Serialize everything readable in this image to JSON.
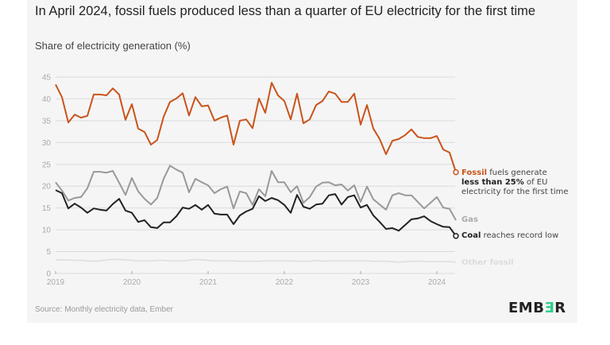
{
  "header": {
    "title": "In April 2024, fossil fuels produced less than a quarter of EU electricity for the first time",
    "subtitle": "Share of electricity generation (%)"
  },
  "footer": {
    "source": "Source: Monthly electricity data, Ember",
    "logo_parts": [
      "EMB",
      "Ǝ",
      "R"
    ]
  },
  "annotations": {
    "fossil": {
      "bold": "Fossil",
      "text1": " fuels generate",
      "bold2": "less than 25%",
      "text2": " of EU",
      "text3": "electricity for the first time"
    },
    "gas": {
      "label": "Gas"
    },
    "coal": {
      "bold": "Coal",
      "text": " reaches record low"
    },
    "other": {
      "label": "Other fossil"
    }
  },
  "colors": {
    "fossil": "#c9541b",
    "gas": "#999999",
    "coal": "#222222",
    "other": "#dddddd",
    "grid": "#dcdcdc",
    "tick": "#aaaaaa"
  },
  "chart_data": {
    "type": "line",
    "title": "In April 2024, fossil fuels produced less than a quarter of EU electricity for the first time",
    "ylabel": "Share of electricity generation (%)",
    "xlabel": "",
    "x_start": "2019-01",
    "x_end": "2024-04",
    "x_frequency": "monthly",
    "x_ticks": [
      "2019",
      "2020",
      "2021",
      "2022",
      "2023",
      "2024"
    ],
    "y_ticks": [
      0,
      5,
      10,
      15,
      20,
      25,
      30,
      35,
      40,
      45
    ],
    "ylim": [
      0,
      45
    ],
    "grid": true,
    "legend": "direct labels at line ends (right)",
    "series": [
      {
        "name": "Fossil",
        "values": [
          43.3,
          40.4,
          34.6,
          36.4,
          35.7,
          36.1,
          41.0,
          41.0,
          40.8,
          42.4,
          41.0,
          35.2,
          38.8,
          33.2,
          32.4,
          29.5,
          30.6,
          35.9,
          39.3,
          40.1,
          41.3,
          36.2,
          40.4,
          38.3,
          38.5,
          35.0,
          35.7,
          36.2,
          29.5,
          35.0,
          35.3,
          33.3,
          40.1,
          36.8,
          43.7,
          40.8,
          39.5,
          35.3,
          41.2,
          34.4,
          35.3,
          38.6,
          39.5,
          41.7,
          41.2,
          39.3,
          39.3,
          41.2,
          34.1,
          38.6,
          33.2,
          30.8,
          27.3,
          30.4,
          30.8,
          31.7,
          33.0,
          31.3,
          31.0,
          31.0,
          31.5,
          28.4,
          27.7,
          23.2
        ]
      },
      {
        "name": "Gas",
        "values": [
          20.9,
          19.0,
          16.7,
          17.3,
          17.5,
          19.5,
          23.3,
          23.3,
          23.1,
          23.5,
          20.8,
          18.0,
          21.9,
          18.8,
          17.1,
          15.8,
          17.3,
          21.7,
          24.7,
          23.8,
          23.1,
          18.6,
          21.7,
          20.9,
          20.2,
          18.4,
          19.3,
          19.9,
          14.9,
          18.8,
          18.4,
          15.7,
          19.3,
          17.7,
          23.5,
          20.9,
          20.9,
          18.6,
          20.0,
          16.2,
          17.5,
          19.9,
          20.8,
          20.9,
          20.2,
          20.4,
          19.0,
          20.2,
          16.4,
          19.9,
          17.0,
          15.8,
          14.6,
          17.9,
          18.4,
          17.9,
          17.9,
          16.4,
          14.9,
          16.2,
          17.5,
          15.1,
          14.8,
          12.2
        ]
      },
      {
        "name": "Coal",
        "values": [
          19.1,
          18.4,
          14.9,
          16.0,
          15.1,
          13.9,
          14.9,
          14.6,
          14.4,
          15.9,
          17.1,
          14.4,
          13.9,
          11.8,
          12.2,
          10.6,
          10.4,
          11.7,
          11.7,
          13.1,
          15.1,
          14.8,
          15.7,
          14.6,
          15.7,
          13.7,
          13.5,
          13.5,
          11.3,
          13.3,
          14.2,
          14.8,
          17.7,
          16.6,
          17.3,
          16.8,
          15.7,
          13.9,
          18.0,
          15.3,
          14.8,
          15.8,
          16.0,
          17.9,
          18.2,
          15.8,
          17.5,
          17.9,
          15.1,
          15.7,
          13.3,
          11.8,
          10.2,
          10.4,
          9.8,
          11.1,
          12.4,
          12.6,
          13.1,
          12.0,
          11.3,
          10.7,
          10.6,
          8.6
        ]
      },
      {
        "name": "Other fossil",
        "values": [
          3.1,
          3.1,
          3.1,
          3.0,
          3.0,
          2.9,
          2.8,
          2.9,
          3.1,
          3.2,
          3.2,
          3.1,
          3.0,
          2.9,
          2.9,
          2.9,
          3.0,
          3.0,
          2.9,
          2.9,
          2.9,
          3.0,
          3.2,
          3.1,
          3.0,
          2.9,
          2.9,
          2.9,
          2.9,
          2.8,
          2.8,
          2.8,
          2.8,
          2.9,
          2.9,
          2.9,
          2.9,
          2.9,
          2.8,
          2.8,
          2.8,
          3.0,
          2.8,
          2.9,
          2.9,
          2.9,
          2.9,
          2.9,
          2.9,
          2.9,
          2.8,
          2.8,
          2.8,
          2.7,
          2.6,
          2.7,
          2.8,
          2.8,
          2.8,
          2.7,
          2.7,
          2.7,
          2.7,
          2.6
        ]
      }
    ]
  }
}
